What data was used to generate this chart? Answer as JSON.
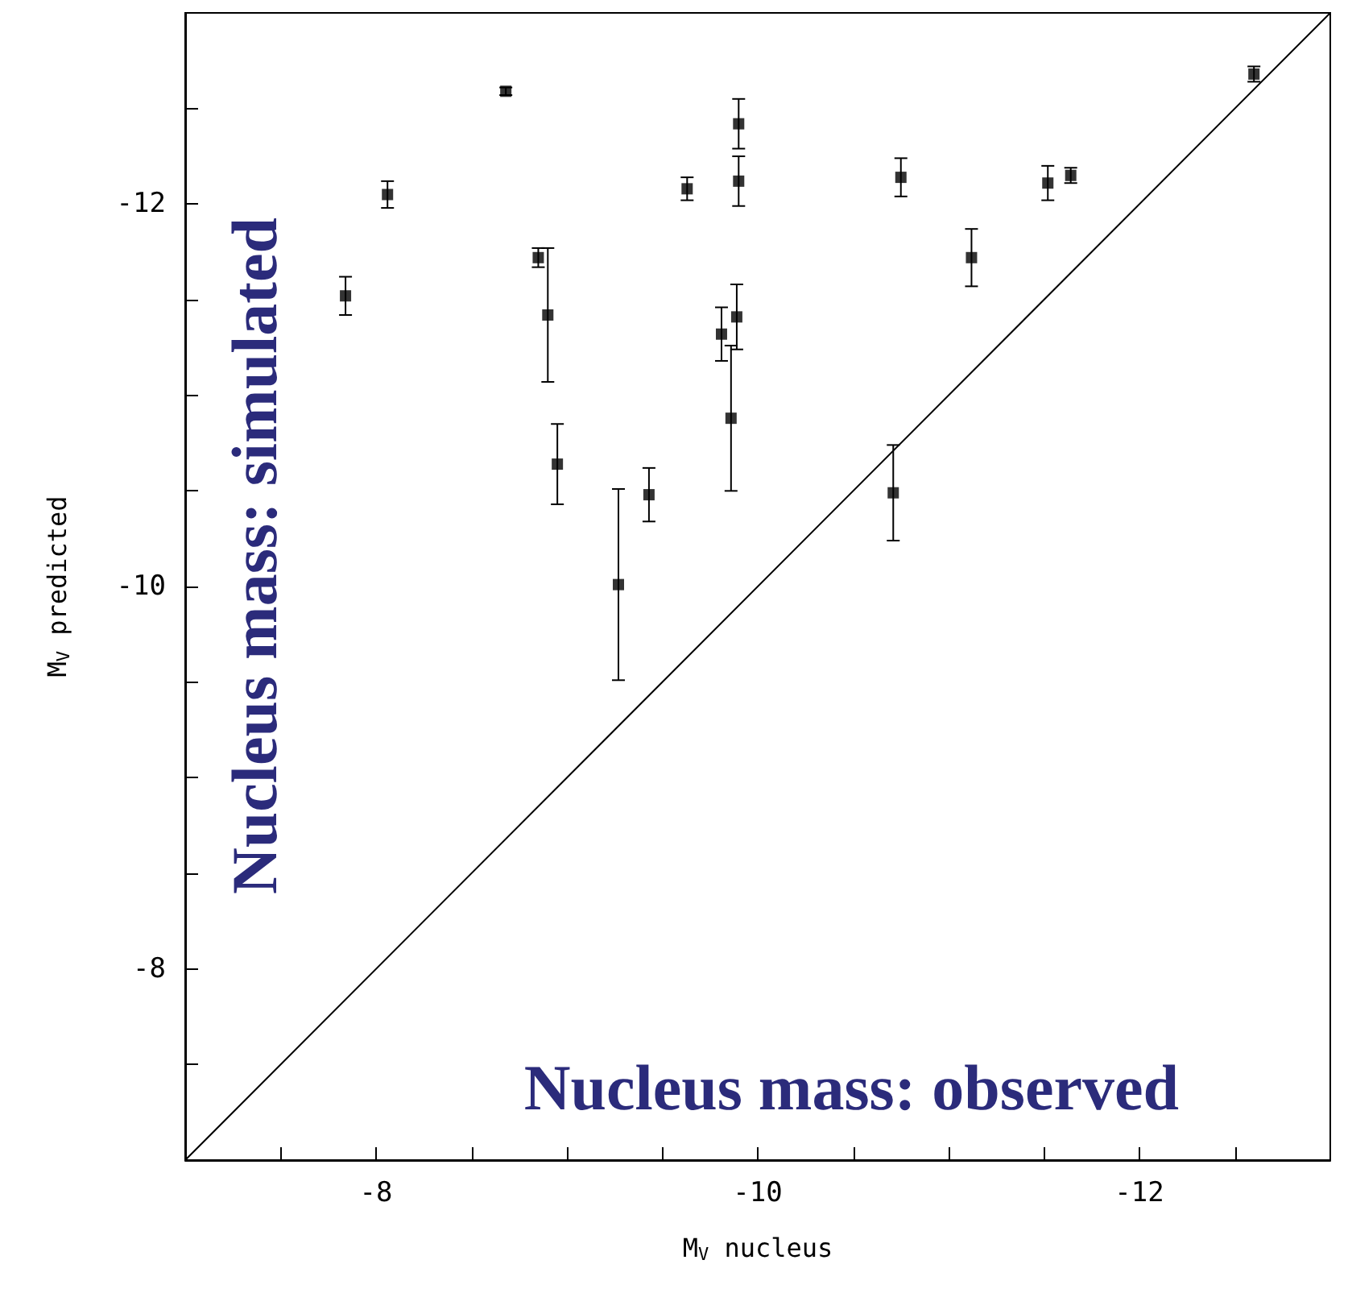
{
  "chart_data": {
    "type": "scatter",
    "xlabel": "M$_{V}$ nucleus",
    "ylabel": "M$_{V}$ predicted",
    "annotations": [
      "Nucleus mass: simulated",
      "Nucleus mass: observed"
    ],
    "xlim": [
      -7,
      -13
    ],
    "ylim": [
      -7,
      -13
    ],
    "xticks": [
      {
        "value": -7.5,
        "label": null
      },
      -8,
      {
        "value": -8.5,
        "label": null
      },
      {
        "value": -9,
        "label": null
      },
      {
        "value": -9.5,
        "label": null
      },
      -10,
      {
        "value": -10.5,
        "label": null
      },
      {
        "value": -11,
        "label": null
      },
      {
        "value": -11.5,
        "label": null
      },
      -12,
      {
        "value": -12.5,
        "label": null
      }
    ],
    "yticks": [
      {
        "value": -7.5,
        "label": null
      },
      -8,
      {
        "value": -8.5,
        "label": null
      },
      {
        "value": -9,
        "label": null
      },
      {
        "value": -9.5,
        "label": null
      },
      -10,
      {
        "value": -10.5,
        "label": null
      },
      {
        "value": -11,
        "label": null
      },
      {
        "value": -11.5,
        "label": null
      },
      -12,
      {
        "value": -12.5,
        "label": null
      }
    ],
    "grid": false,
    "marker": "square",
    "series": [
      {
        "color": "#000000",
        "x": [
          -7.84,
          -8.06,
          -8.68,
          -8.85,
          -8.9,
          -8.95,
          -9.27,
          -9.43,
          -9.63,
          -9.81,
          -9.86,
          -9.89,
          -9.9,
          -9.9,
          -10.71,
          -10.75,
          -11.12,
          -11.52,
          -11.64,
          -12.6
        ],
        "values": [
          -11.52,
          -12.05,
          -12.59,
          -11.72,
          -11.42,
          -10.64,
          -10.01,
          -10.48,
          -12.08,
          -11.32,
          -10.88,
          -11.41,
          -12.42,
          -12.12,
          -10.49,
          -12.14,
          -11.72,
          -12.11,
          -12.15,
          -12.68
        ],
        "errors": [
          0.1,
          0.07,
          0.02,
          0.05,
          0.35,
          0.21,
          0.5,
          0.14,
          0.06,
          0.14,
          0.38,
          0.17,
          0.13,
          0.13,
          0.25,
          0.1,
          0.15,
          0.09,
          0.04,
          0.04
        ]
      },
      {
        "type": "line",
        "color": "#000000",
        "marker": "none",
        "line_style": "solid",
        "x": [
          -7,
          -13
        ],
        "values": [
          -7,
          -13
        ]
      }
    ]
  }
}
